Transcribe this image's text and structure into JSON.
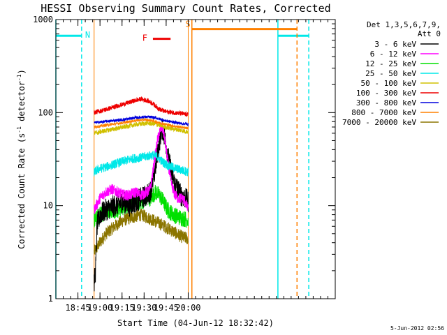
{
  "chart_data": {
    "type": "line",
    "title": "HESSI Observing Summary Count Rates, Corrected",
    "xlabel": "Start Time (04-Jun-12 18:32:42)",
    "ylabel": "Corrected Count Rate (s⁻¹ detector⁻¹)",
    "ylabel_parts": {
      "main": "Corrected Count Rate (s",
      "sup1": "-1",
      "mid": " detector",
      "sup2": "-1",
      "end": ")"
    },
    "ylim": [
      1,
      1000
    ],
    "yscale": "log",
    "y_ticks": [
      "1",
      "10",
      "100",
      "1000"
    ],
    "x_range_min": [
      0,
      190
    ],
    "x_tick_min": [
      15,
      30,
      45,
      60,
      75,
      90
    ],
    "x_tick_labels": [
      "18:45",
      "19:00",
      "19:15",
      "19:30",
      "19:45",
      "20:00"
    ],
    "legend": {
      "placement": "outside-right",
      "header": [
        "Det 1,3,5,6,7,9,",
        "Att 0"
      ],
      "entries": [
        {
          "name": "3 - 6 keV",
          "color": "#000000"
        },
        {
          "name": "6 - 12 keV",
          "color": "#ff00ff"
        },
        {
          "name": "12 - 25 keV",
          "color": "#00e000"
        },
        {
          "name": "25 - 50 keV",
          "color": "#00e8e8"
        },
        {
          "name": "50 - 100 keV",
          "color": "#d0c000"
        },
        {
          "name": "100 - 300 keV",
          "color": "#ee0000"
        },
        {
          "name": "300 - 800 keV",
          "color": "#0000dd"
        },
        {
          "name": "800 - 7000 keV",
          "color": "#ff8000"
        },
        {
          "name": "7000 - 20000 keV",
          "color": "#8b7500"
        }
      ]
    },
    "series": [
      {
        "name": "3 - 6 keV",
        "color": "#000000",
        "points": [
          [
            26,
            1.5
          ],
          [
            27,
            2
          ],
          [
            28,
            6
          ],
          [
            30,
            8
          ],
          [
            34,
            9
          ],
          [
            40,
            10
          ],
          [
            46,
            11
          ],
          [
            50,
            10
          ],
          [
            54,
            11
          ],
          [
            58,
            12
          ],
          [
            62,
            13
          ],
          [
            64,
            14
          ],
          [
            65,
            16
          ],
          [
            67,
            22
          ],
          [
            69,
            35
          ],
          [
            71,
            55
          ],
          [
            72,
            68
          ],
          [
            73,
            64
          ],
          [
            75,
            45
          ],
          [
            77,
            30
          ],
          [
            79,
            21
          ],
          [
            81,
            17
          ],
          [
            83,
            15
          ],
          [
            85,
            13
          ],
          [
            88,
            12
          ],
          [
            90,
            11
          ]
        ],
        "noise": 0.12
      },
      {
        "name": "6 - 12 keV",
        "color": "#ff00ff",
        "points": [
          [
            26,
            9
          ],
          [
            30,
            12
          ],
          [
            34,
            14
          ],
          [
            38,
            15
          ],
          [
            42,
            14
          ],
          [
            46,
            13
          ],
          [
            50,
            13
          ],
          [
            54,
            14
          ],
          [
            58,
            13
          ],
          [
            62,
            14
          ],
          [
            64,
            15
          ],
          [
            65,
            18
          ],
          [
            67,
            30
          ],
          [
            69,
            50
          ],
          [
            71,
            65
          ],
          [
            72,
            70
          ],
          [
            73,
            65
          ],
          [
            75,
            40
          ],
          [
            77,
            24
          ],
          [
            79,
            16
          ],
          [
            81,
            13
          ],
          [
            83,
            12
          ],
          [
            86,
            12
          ],
          [
            88,
            11
          ],
          [
            90,
            9
          ]
        ],
        "noise": 0.06
      },
      {
        "name": "12 - 25 keV",
        "color": "#00e000",
        "points": [
          [
            26,
            7
          ],
          [
            30,
            8
          ],
          [
            36,
            9
          ],
          [
            42,
            9
          ],
          [
            48,
            10
          ],
          [
            54,
            11
          ],
          [
            58,
            11
          ],
          [
            62,
            12
          ],
          [
            64,
            12
          ],
          [
            66,
            13
          ],
          [
            68,
            14
          ],
          [
            70,
            13
          ],
          [
            72,
            12
          ],
          [
            76,
            9
          ],
          [
            80,
            8
          ],
          [
            84,
            7.5
          ],
          [
            90,
            7
          ]
        ],
        "noise": 0.09
      },
      {
        "name": "25 - 50 keV",
        "color": "#00e8e8",
        "points": [
          [
            26,
            23
          ],
          [
            30,
            25
          ],
          [
            34,
            26
          ],
          [
            40,
            28
          ],
          [
            46,
            30
          ],
          [
            52,
            32
          ],
          [
            58,
            33
          ],
          [
            62,
            34
          ],
          [
            66,
            35
          ],
          [
            70,
            33
          ],
          [
            72,
            30
          ],
          [
            76,
            27
          ],
          [
            82,
            25
          ],
          [
            90,
            23
          ]
        ],
        "noise": 0.05
      },
      {
        "name": "50 - 100 keV",
        "color": "#d0c000",
        "points": [
          [
            26,
            60
          ],
          [
            34,
            64
          ],
          [
            42,
            68
          ],
          [
            50,
            72
          ],
          [
            56,
            75
          ],
          [
            62,
            77
          ],
          [
            66,
            76
          ],
          [
            70,
            74
          ],
          [
            74,
            70
          ],
          [
            80,
            67
          ],
          [
            86,
            64
          ],
          [
            90,
            62
          ]
        ],
        "noise": 0.025
      },
      {
        "name": "100 - 300 keV",
        "color": "#ee0000",
        "points": [
          [
            26,
            100
          ],
          [
            34,
            108
          ],
          [
            42,
            118
          ],
          [
            48,
            126
          ],
          [
            54,
            135
          ],
          [
            58,
            140
          ],
          [
            62,
            135
          ],
          [
            66,
            125
          ],
          [
            70,
            110
          ],
          [
            74,
            103
          ],
          [
            80,
            100
          ],
          [
            86,
            97
          ],
          [
            90,
            95
          ]
        ],
        "noise": 0.025
      },
      {
        "name": "300 - 800 keV",
        "color": "#0000dd",
        "points": [
          [
            26,
            78
          ],
          [
            36,
            81
          ],
          [
            46,
            84
          ],
          [
            54,
            88
          ],
          [
            60,
            90
          ],
          [
            66,
            89
          ],
          [
            70,
            86
          ],
          [
            74,
            82
          ],
          [
            80,
            79
          ],
          [
            86,
            76
          ],
          [
            90,
            75
          ]
        ],
        "noise": 0.015
      },
      {
        "name": "800 - 7000 keV",
        "color": "#ff8000",
        "points": [
          [
            26,
            70
          ],
          [
            36,
            74
          ],
          [
            46,
            78
          ],
          [
            54,
            82
          ],
          [
            60,
            84
          ],
          [
            66,
            82
          ],
          [
            70,
            78
          ],
          [
            76,
            74
          ],
          [
            82,
            71
          ],
          [
            90,
            68
          ]
        ],
        "noise": 0.015
      },
      {
        "name": "7000 - 20000 keV",
        "color": "#8b7500",
        "points": [
          [
            26,
            3.2
          ],
          [
            30,
            4
          ],
          [
            34,
            5
          ],
          [
            40,
            6
          ],
          [
            46,
            7
          ],
          [
            52,
            7.5
          ],
          [
            58,
            8
          ],
          [
            62,
            7.5
          ],
          [
            66,
            7
          ],
          [
            70,
            6.5
          ],
          [
            74,
            6
          ],
          [
            78,
            5.5
          ],
          [
            82,
            5
          ],
          [
            86,
            4.6
          ],
          [
            90,
            4.4
          ]
        ],
        "noise": 0.07
      }
    ],
    "annotations": {
      "flags": [
        {
          "label": "N",
          "color": "#00e8e8",
          "bars": [
            {
              "x0": 0,
              "x1": 17.5,
              "y": 670
            },
            {
              "x0": 151,
              "x1": 172,
              "y": 670
            }
          ],
          "solid_lines": [
            0,
            151
          ],
          "dashed_lines": [
            17.5,
            172
          ]
        },
        {
          "label": "S",
          "color": "#ff8000",
          "bars": [
            {
              "x0": 92.5,
              "x1": 164,
              "y": 790
            }
          ],
          "solid_lines": [
            92.5
          ],
          "dashed_lines": [
            164
          ]
        },
        {
          "label": "F",
          "color": "#ee0000",
          "bars": [
            {
              "x0": 66,
              "x1": 78,
              "y": 620
            }
          ],
          "solid_lines": [],
          "dashed_lines": []
        }
      ],
      "data_bounds": {
        "color": "#ff8000",
        "lines": [
          26,
          90
        ]
      }
    }
  },
  "timestamp": "5-Jun-2012 02:56"
}
